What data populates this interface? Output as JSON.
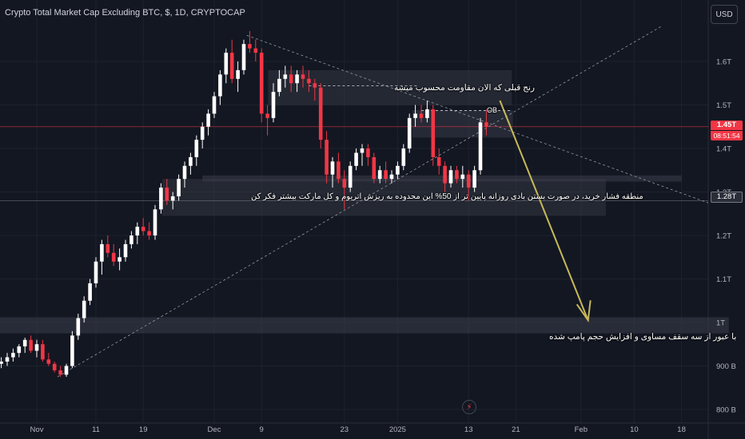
{
  "header": {
    "title": "Crypto Total Market Cap Excluding BTC, $, 1D, CRYPTOCAP",
    "currency_button": "USD"
  },
  "badges": {
    "last_price": "1.45T",
    "countdown": "08:51:54",
    "crosshair_price": "1.28T"
  },
  "colors": {
    "background": "#131722",
    "up": "#ffffff",
    "down": "#f23645",
    "arrow": "#c8b95a",
    "zone": "#3a3e4a",
    "trendline": "#9598a1"
  },
  "icons": {
    "replay": "lightning-icon"
  },
  "chart_data": {
    "type": "candlestick",
    "title": "Crypto Total Market Cap Excluding BTC, $, 1D, CRYPTOCAP",
    "y_unit": "T",
    "ylim": [
      0.78,
      1.72
    ],
    "y_ticks": [
      {
        "value": 0.8,
        "label": "800 B"
      },
      {
        "value": 0.9,
        "label": "900 B"
      },
      {
        "value": 1.0,
        "label": "1T"
      },
      {
        "value": 1.1,
        "label": "1.1T"
      },
      {
        "value": 1.2,
        "label": "1.2T"
      },
      {
        "value": 1.3,
        "label": "1.3T"
      },
      {
        "value": 1.4,
        "label": "1.4T"
      },
      {
        "value": 1.5,
        "label": "1.5T"
      },
      {
        "value": 1.6,
        "label": "1.6T"
      }
    ],
    "x_ticks": [
      {
        "day": 0,
        "label": "Nov"
      },
      {
        "day": 10,
        "label": "11"
      },
      {
        "day": 18,
        "label": "19"
      },
      {
        "day": 30,
        "label": "Dec"
      },
      {
        "day": 38,
        "label": "9"
      },
      {
        "day": 52,
        "label": "23"
      },
      {
        "day": 61,
        "label": "2025"
      },
      {
        "day": 73,
        "label": "13"
      },
      {
        "day": 81,
        "label": "21"
      },
      {
        "day": 92,
        "label": "Feb"
      },
      {
        "day": 101,
        "label": "10"
      },
      {
        "day": 109,
        "label": "18"
      }
    ],
    "candles": [
      {
        "d": -6,
        "o": 0.905,
        "h": 0.92,
        "l": 0.895,
        "c": 0.91
      },
      {
        "d": -5,
        "o": 0.91,
        "h": 0.93,
        "l": 0.9,
        "c": 0.92
      },
      {
        "d": -4,
        "o": 0.92,
        "h": 0.94,
        "l": 0.91,
        "c": 0.93
      },
      {
        "d": -3,
        "o": 0.93,
        "h": 0.95,
        "l": 0.92,
        "c": 0.945
      },
      {
        "d": -2,
        "o": 0.945,
        "h": 0.965,
        "l": 0.93,
        "c": 0.96
      },
      {
        "d": -1,
        "o": 0.96,
        "h": 0.97,
        "l": 0.93,
        "c": 0.935
      },
      {
        "d": 0,
        "o": 0.935,
        "h": 0.96,
        "l": 0.92,
        "c": 0.95
      },
      {
        "d": 1,
        "o": 0.95,
        "h": 0.96,
        "l": 0.91,
        "c": 0.915
      },
      {
        "d": 2,
        "o": 0.915,
        "h": 0.93,
        "l": 0.9,
        "c": 0.905
      },
      {
        "d": 3,
        "o": 0.905,
        "h": 0.91,
        "l": 0.885,
        "c": 0.89
      },
      {
        "d": 4,
        "o": 0.89,
        "h": 0.9,
        "l": 0.875,
        "c": 0.88
      },
      {
        "d": 5,
        "o": 0.88,
        "h": 0.905,
        "l": 0.875,
        "c": 0.9
      },
      {
        "d": 6,
        "o": 0.9,
        "h": 0.98,
        "l": 0.895,
        "c": 0.97
      },
      {
        "d": 7,
        "o": 0.97,
        "h": 1.02,
        "l": 0.96,
        "c": 1.01
      },
      {
        "d": 8,
        "o": 1.01,
        "h": 1.06,
        "l": 1.0,
        "c": 1.05
      },
      {
        "d": 9,
        "o": 1.05,
        "h": 1.1,
        "l": 1.04,
        "c": 1.09
      },
      {
        "d": 10,
        "o": 1.09,
        "h": 1.15,
        "l": 1.08,
        "c": 1.14
      },
      {
        "d": 11,
        "o": 1.14,
        "h": 1.19,
        "l": 1.11,
        "c": 1.18
      },
      {
        "d": 12,
        "o": 1.18,
        "h": 1.2,
        "l": 1.15,
        "c": 1.16
      },
      {
        "d": 13,
        "o": 1.16,
        "h": 1.18,
        "l": 1.13,
        "c": 1.14
      },
      {
        "d": 14,
        "o": 1.14,
        "h": 1.17,
        "l": 1.12,
        "c": 1.15
      },
      {
        "d": 15,
        "o": 1.15,
        "h": 1.19,
        "l": 1.14,
        "c": 1.18
      },
      {
        "d": 16,
        "o": 1.18,
        "h": 1.21,
        "l": 1.17,
        "c": 1.2
      },
      {
        "d": 17,
        "o": 1.2,
        "h": 1.23,
        "l": 1.18,
        "c": 1.22
      },
      {
        "d": 18,
        "o": 1.22,
        "h": 1.24,
        "l": 1.2,
        "c": 1.21
      },
      {
        "d": 19,
        "o": 1.21,
        "h": 1.23,
        "l": 1.19,
        "c": 1.2
      },
      {
        "d": 20,
        "o": 1.2,
        "h": 1.27,
        "l": 1.19,
        "c": 1.26
      },
      {
        "d": 21,
        "o": 1.26,
        "h": 1.32,
        "l": 1.25,
        "c": 1.31
      },
      {
        "d": 22,
        "o": 1.31,
        "h": 1.33,
        "l": 1.27,
        "c": 1.28
      },
      {
        "d": 23,
        "o": 1.28,
        "h": 1.3,
        "l": 1.26,
        "c": 1.29
      },
      {
        "d": 24,
        "o": 1.29,
        "h": 1.34,
        "l": 1.28,
        "c": 1.33
      },
      {
        "d": 25,
        "o": 1.33,
        "h": 1.37,
        "l": 1.31,
        "c": 1.36
      },
      {
        "d": 26,
        "o": 1.36,
        "h": 1.39,
        "l": 1.34,
        "c": 1.38
      },
      {
        "d": 27,
        "o": 1.38,
        "h": 1.43,
        "l": 1.36,
        "c": 1.42
      },
      {
        "d": 28,
        "o": 1.42,
        "h": 1.46,
        "l": 1.4,
        "c": 1.45
      },
      {
        "d": 29,
        "o": 1.45,
        "h": 1.49,
        "l": 1.43,
        "c": 1.48
      },
      {
        "d": 30,
        "o": 1.48,
        "h": 1.53,
        "l": 1.47,
        "c": 1.52
      },
      {
        "d": 31,
        "o": 1.52,
        "h": 1.58,
        "l": 1.5,
        "c": 1.57
      },
      {
        "d": 32,
        "o": 1.57,
        "h": 1.63,
        "l": 1.55,
        "c": 1.62
      },
      {
        "d": 33,
        "o": 1.62,
        "h": 1.65,
        "l": 1.55,
        "c": 1.56
      },
      {
        "d": 34,
        "o": 1.56,
        "h": 1.6,
        "l": 1.53,
        "c": 1.58
      },
      {
        "d": 35,
        "o": 1.58,
        "h": 1.65,
        "l": 1.57,
        "c": 1.64
      },
      {
        "d": 36,
        "o": 1.64,
        "h": 1.67,
        "l": 1.62,
        "c": 1.63
      },
      {
        "d": 37,
        "o": 1.63,
        "h": 1.65,
        "l": 1.6,
        "c": 1.62
      },
      {
        "d": 38,
        "o": 1.62,
        "h": 1.63,
        "l": 1.46,
        "c": 1.48
      },
      {
        "d": 39,
        "o": 1.48,
        "h": 1.5,
        "l": 1.43,
        "c": 1.47
      },
      {
        "d": 40,
        "o": 1.47,
        "h": 1.55,
        "l": 1.46,
        "c": 1.53
      },
      {
        "d": 41,
        "o": 1.53,
        "h": 1.58,
        "l": 1.52,
        "c": 1.56
      },
      {
        "d": 42,
        "o": 1.56,
        "h": 1.59,
        "l": 1.54,
        "c": 1.57
      },
      {
        "d": 43,
        "o": 1.57,
        "h": 1.59,
        "l": 1.53,
        "c": 1.55
      },
      {
        "d": 44,
        "o": 1.55,
        "h": 1.58,
        "l": 1.53,
        "c": 1.57
      },
      {
        "d": 45,
        "o": 1.57,
        "h": 1.59,
        "l": 1.54,
        "c": 1.56
      },
      {
        "d": 46,
        "o": 1.56,
        "h": 1.58,
        "l": 1.53,
        "c": 1.55
      },
      {
        "d": 47,
        "o": 1.55,
        "h": 1.56,
        "l": 1.51,
        "c": 1.54
      },
      {
        "d": 48,
        "o": 1.54,
        "h": 1.55,
        "l": 1.4,
        "c": 1.42
      },
      {
        "d": 49,
        "o": 1.42,
        "h": 1.44,
        "l": 1.32,
        "c": 1.34
      },
      {
        "d": 50,
        "o": 1.34,
        "h": 1.38,
        "l": 1.31,
        "c": 1.37
      },
      {
        "d": 51,
        "o": 1.37,
        "h": 1.39,
        "l": 1.32,
        "c": 1.33
      },
      {
        "d": 52,
        "o": 1.33,
        "h": 1.35,
        "l": 1.26,
        "c": 1.31
      },
      {
        "d": 53,
        "o": 1.31,
        "h": 1.37,
        "l": 1.3,
        "c": 1.36
      },
      {
        "d": 54,
        "o": 1.36,
        "h": 1.4,
        "l": 1.35,
        "c": 1.39
      },
      {
        "d": 55,
        "o": 1.39,
        "h": 1.41,
        "l": 1.36,
        "c": 1.4
      },
      {
        "d": 56,
        "o": 1.4,
        "h": 1.41,
        "l": 1.36,
        "c": 1.38
      },
      {
        "d": 57,
        "o": 1.38,
        "h": 1.39,
        "l": 1.32,
        "c": 1.33
      },
      {
        "d": 58,
        "o": 1.33,
        "h": 1.36,
        "l": 1.32,
        "c": 1.35
      },
      {
        "d": 59,
        "o": 1.35,
        "h": 1.37,
        "l": 1.32,
        "c": 1.33
      },
      {
        "d": 60,
        "o": 1.33,
        "h": 1.35,
        "l": 1.32,
        "c": 1.34
      },
      {
        "d": 61,
        "o": 1.34,
        "h": 1.37,
        "l": 1.33,
        "c": 1.36
      },
      {
        "d": 62,
        "o": 1.36,
        "h": 1.41,
        "l": 1.35,
        "c": 1.4
      },
      {
        "d": 63,
        "o": 1.4,
        "h": 1.48,
        "l": 1.39,
        "c": 1.47
      },
      {
        "d": 64,
        "o": 1.47,
        "h": 1.5,
        "l": 1.45,
        "c": 1.48
      },
      {
        "d": 65,
        "o": 1.48,
        "h": 1.5,
        "l": 1.46,
        "c": 1.47
      },
      {
        "d": 66,
        "o": 1.47,
        "h": 1.51,
        "l": 1.46,
        "c": 1.49
      },
      {
        "d": 67,
        "o": 1.49,
        "h": 1.5,
        "l": 1.36,
        "c": 1.38
      },
      {
        "d": 68,
        "o": 1.38,
        "h": 1.4,
        "l": 1.34,
        "c": 1.36
      },
      {
        "d": 69,
        "o": 1.36,
        "h": 1.37,
        "l": 1.3,
        "c": 1.32
      },
      {
        "d": 70,
        "o": 1.32,
        "h": 1.36,
        "l": 1.31,
        "c": 1.35
      },
      {
        "d": 71,
        "o": 1.35,
        "h": 1.36,
        "l": 1.32,
        "c": 1.33
      },
      {
        "d": 72,
        "o": 1.33,
        "h": 1.36,
        "l": 1.31,
        "c": 1.34
      },
      {
        "d": 73,
        "o": 1.34,
        "h": 1.35,
        "l": 1.28,
        "c": 1.31
      },
      {
        "d": 74,
        "o": 1.31,
        "h": 1.36,
        "l": 1.3,
        "c": 1.35
      },
      {
        "d": 75,
        "o": 1.35,
        "h": 1.47,
        "l": 1.34,
        "c": 1.46
      },
      {
        "d": 76,
        "o": 1.46,
        "h": 1.49,
        "l": 1.43,
        "c": 1.45
      }
    ]
  },
  "annotations": {
    "resistance_label": "رنج قبلی که الان مقاومت محسوب میشه",
    "ob_label": "OB",
    "buy_zone_label": "منطقه فشار خرید، در صورت بستن بادی روزانه پایین تر از 50% این محدوده به ریزش اتریوم و کل مارکت بیشتر فکر کن",
    "pump_label": "با عبور از سه سقف مساوی و افزایش حجم پامپ شده"
  }
}
